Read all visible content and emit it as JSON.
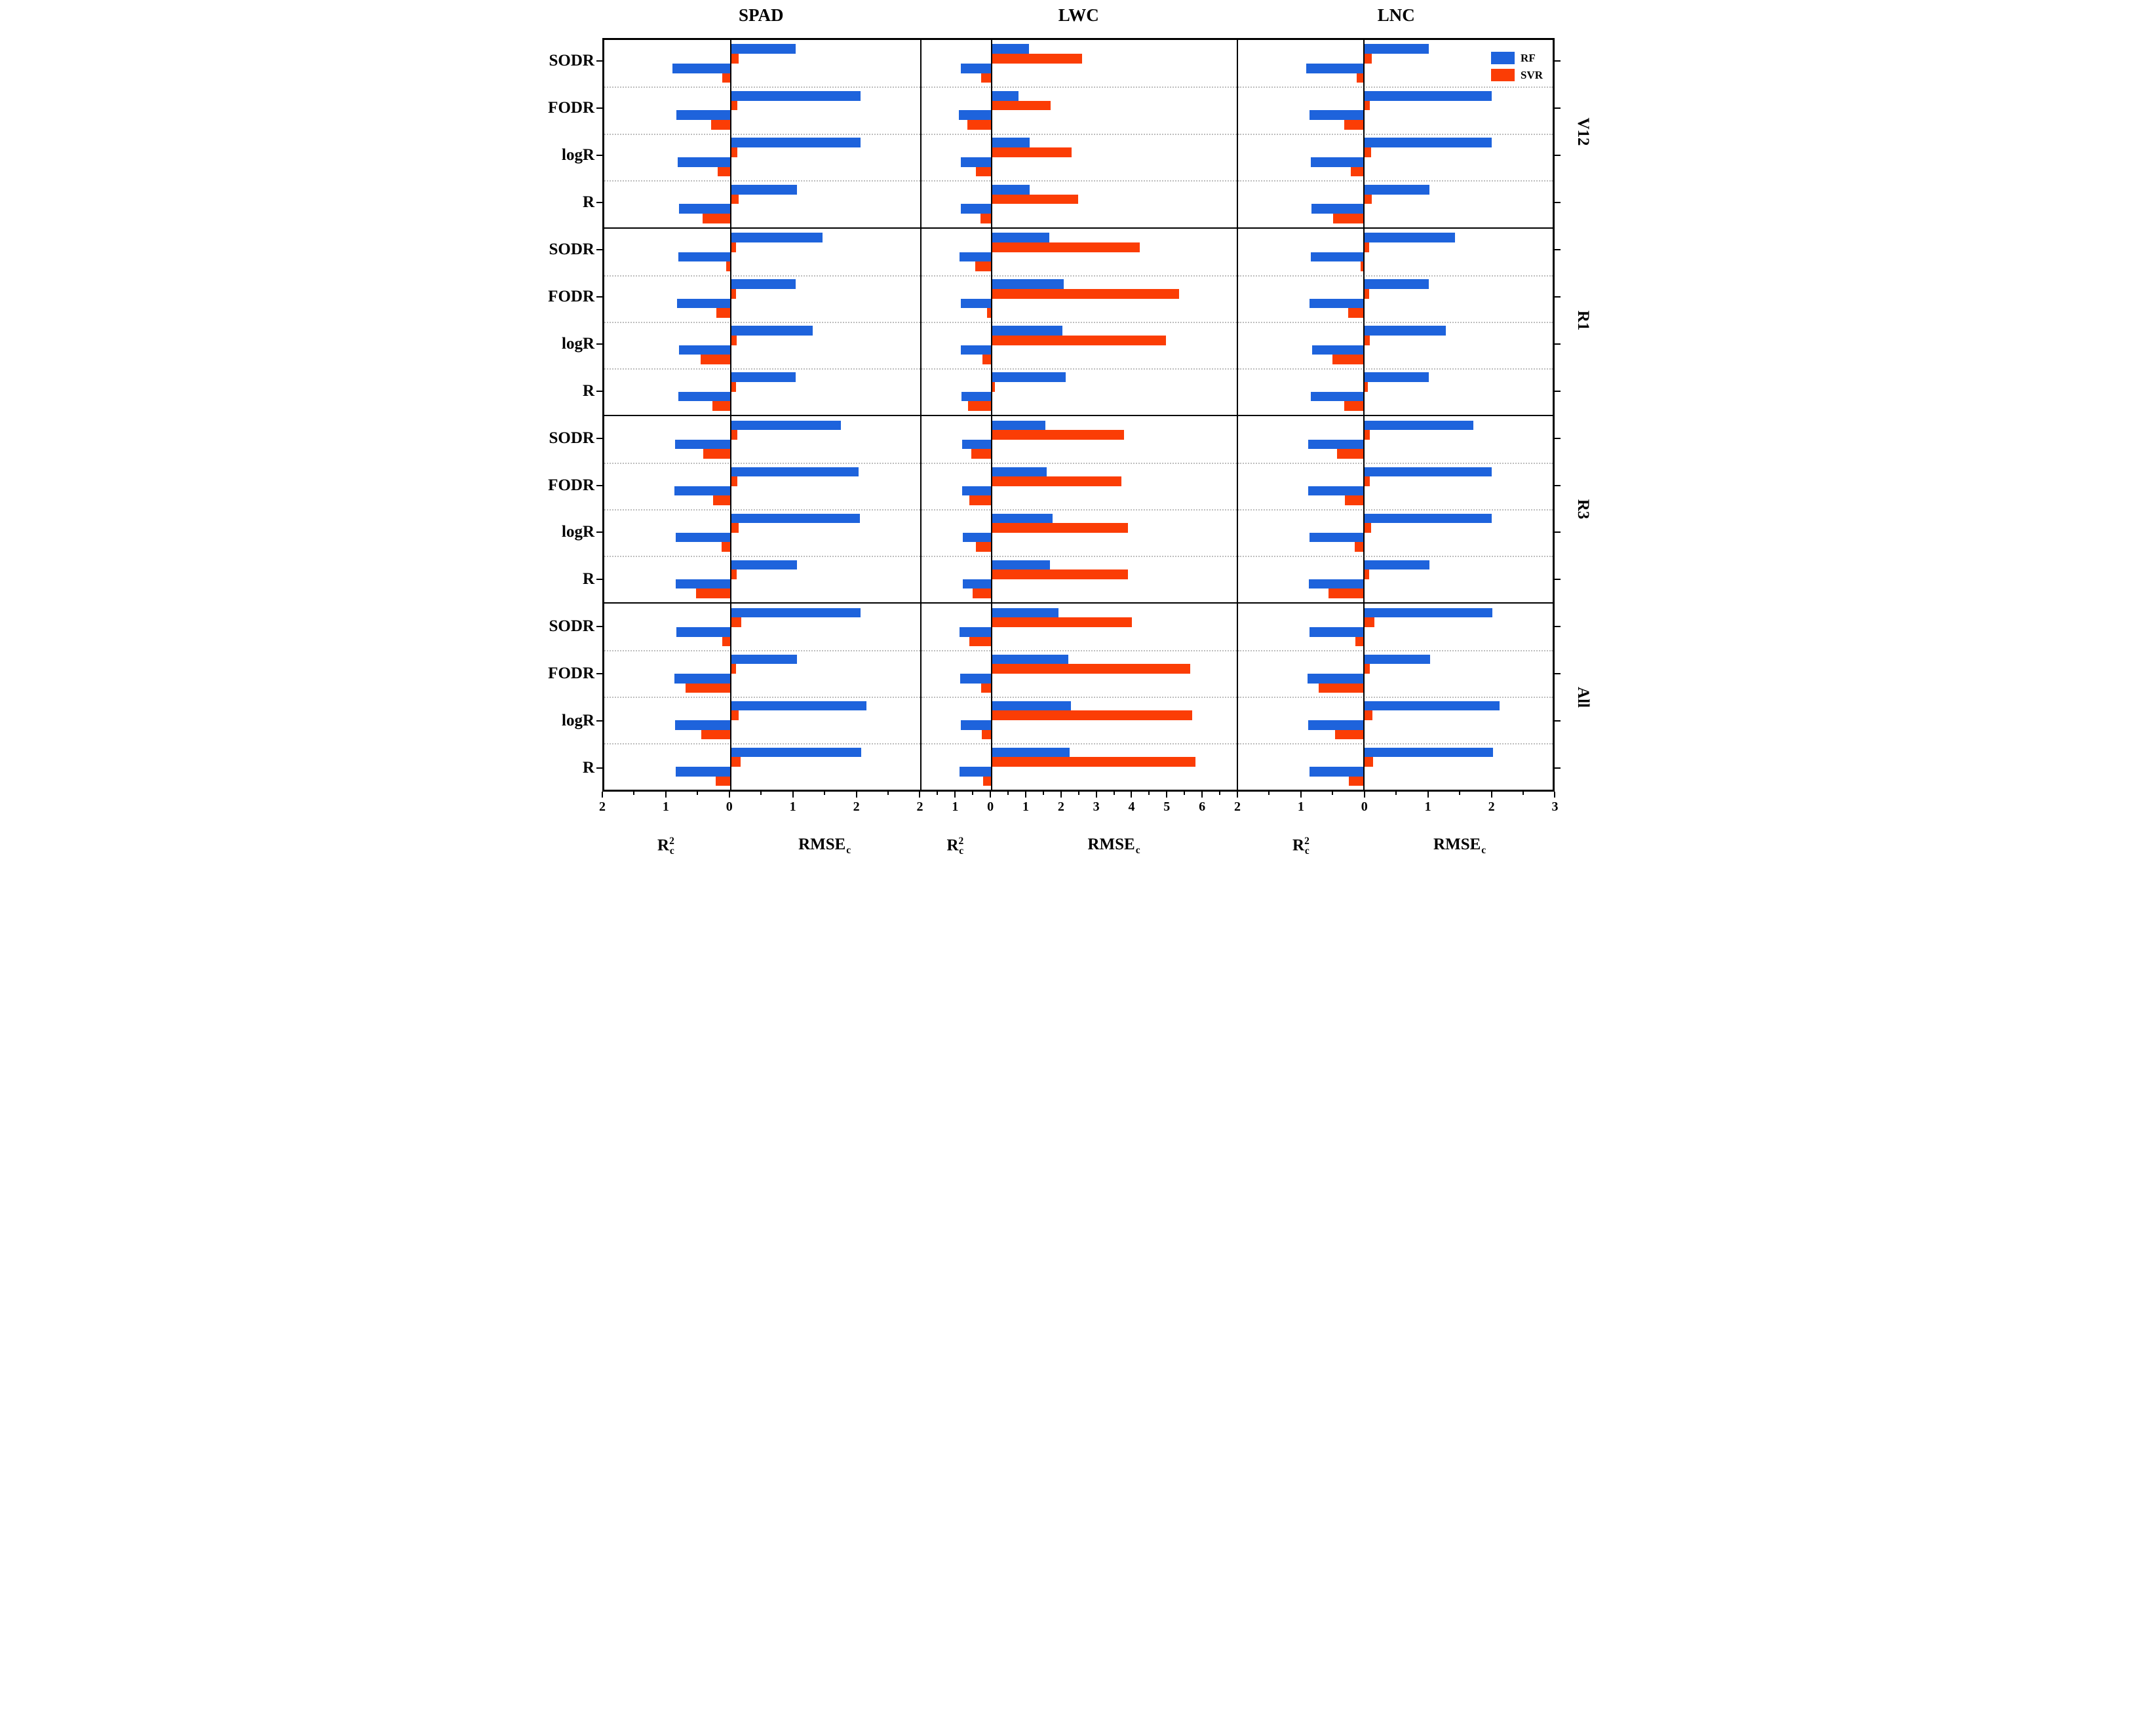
{
  "chart_data": {
    "type": "bar",
    "orientation": "horizontal-diverging",
    "description": "Calibration R2c (bars extending left of zero) and RMSEc (bars extending right of zero) for RF and SVR models, for four spectral data types (SODR, FODR, logR, R), in a 4x3 grid of panels (rows: growth stages V12, R1, R3, All; columns: traits SPAD, LWC, LNC).",
    "rows": [
      "V12",
      "R1",
      "R3",
      "All"
    ],
    "categories": [
      "SODR",
      "FODR",
      "logR",
      "R"
    ],
    "legend": [
      {
        "label": "RF",
        "color": "#1e63dc"
      },
      {
        "label": "SVR",
        "color": "#fb3d05"
      }
    ],
    "series_order": [
      {
        "model": "RF",
        "metric": "RMSEc",
        "side": "right",
        "color": "#1e63dc"
      },
      {
        "model": "SVR",
        "metric": "RMSEc",
        "side": "right",
        "color": "#fb3d05"
      },
      {
        "model": "RF",
        "metric": "R2c",
        "side": "left",
        "color": "#1e63dc"
      },
      {
        "model": "SVR",
        "metric": "R2c",
        "side": "left",
        "color": "#fb3d05"
      }
    ],
    "axis_titles": {
      "r2": {
        "base": "R",
        "sup": "2",
        "sub": "c"
      },
      "rmse": {
        "base": "RMSE",
        "sub": "c"
      }
    },
    "columns": [
      {
        "title": "SPAD",
        "neg_max": 2,
        "pos_max": 3,
        "major_ticks": [
          -2,
          -1,
          0,
          1,
          2
        ],
        "tick_labels": [
          "2",
          "1",
          "0",
          "1",
          "2"
        ]
      },
      {
        "title": "LWC",
        "neg_max": 2,
        "pos_max": 7,
        "major_ticks": [
          -2,
          -1,
          0,
          1,
          2,
          3,
          4,
          5,
          6
        ],
        "tick_labels": [
          "2",
          "1",
          "0",
          "1",
          "2",
          "3",
          "4",
          "5",
          "6"
        ]
      },
      {
        "title": "LNC",
        "neg_max": 2,
        "pos_max": 3,
        "major_ticks": [
          -2,
          -1,
          0,
          1,
          2,
          3
        ],
        "tick_labels": [
          "2",
          "1",
          "0",
          "1",
          "2",
          "3"
        ]
      }
    ],
    "value_keys_per_category": [
      "rf_rmsec",
      "svr_rmsec",
      "rf_r2c",
      "svr_r2c"
    ],
    "panels": [
      {
        "row": "V12",
        "column": "SPAD",
        "values": [
          [
            1.03,
            0.12,
            0.92,
            0.13
          ],
          [
            2.05,
            0.1,
            0.86,
            0.31
          ],
          [
            2.05,
            0.1,
            0.84,
            0.21
          ],
          [
            1.05,
            0.12,
            0.82,
            0.45
          ]
        ]
      },
      {
        "row": "V12",
        "column": "LWC",
        "values": [
          [
            1.06,
            2.58,
            0.89,
            0.31
          ],
          [
            0.77,
            1.69,
            0.95,
            0.7
          ],
          [
            1.08,
            2.28,
            0.88,
            0.45
          ],
          [
            1.09,
            2.46,
            0.88,
            0.33
          ]
        ]
      },
      {
        "row": "V12",
        "column": "LNC",
        "values": [
          [
            1.03,
            0.12,
            0.92,
            0.12
          ],
          [
            2.03,
            0.09,
            0.87,
            0.31
          ],
          [
            2.03,
            0.11,
            0.84,
            0.21
          ],
          [
            1.04,
            0.12,
            0.83,
            0.49
          ]
        ]
      },
      {
        "row": "R1",
        "column": "SPAD",
        "values": [
          [
            1.45,
            0.08,
            0.83,
            0.07
          ],
          [
            1.03,
            0.08,
            0.85,
            0.23
          ],
          [
            1.3,
            0.09,
            0.82,
            0.48
          ],
          [
            1.03,
            0.08,
            0.83,
            0.29
          ]
        ]
      },
      {
        "row": "R1",
        "column": "LWC",
        "values": [
          [
            1.64,
            4.23,
            0.92,
            0.47
          ],
          [
            2.05,
            5.36,
            0.88,
            0.13
          ],
          [
            2.01,
            4.98,
            0.89,
            0.26
          ],
          [
            2.11,
            0.09,
            0.86,
            0.68
          ]
        ]
      },
      {
        "row": "R1",
        "column": "LNC",
        "values": [
          [
            1.44,
            0.08,
            0.84,
            0.05
          ],
          [
            1.03,
            0.08,
            0.87,
            0.25
          ],
          [
            1.3,
            0.09,
            0.82,
            0.5
          ],
          [
            1.03,
            0.06,
            0.84,
            0.31
          ]
        ]
      },
      {
        "row": "R3",
        "column": "SPAD",
        "values": [
          [
            1.74,
            0.1,
            0.88,
            0.43
          ],
          [
            2.02,
            0.1,
            0.89,
            0.28
          ],
          [
            2.04,
            0.12,
            0.87,
            0.15
          ],
          [
            1.05,
            0.09,
            0.87,
            0.55
          ]
        ]
      },
      {
        "row": "R3",
        "column": "LWC",
        "values": [
          [
            1.54,
            3.77,
            0.85,
            0.58
          ],
          [
            1.57,
            3.71,
            0.85,
            0.64
          ],
          [
            1.73,
            3.89,
            0.82,
            0.45
          ],
          [
            1.67,
            3.89,
            0.83,
            0.55
          ]
        ]
      },
      {
        "row": "R3",
        "column": "LNC",
        "values": [
          [
            1.74,
            0.09,
            0.89,
            0.43
          ],
          [
            2.03,
            0.09,
            0.89,
            0.3
          ],
          [
            2.03,
            0.11,
            0.87,
            0.15
          ],
          [
            1.04,
            0.08,
            0.88,
            0.56
          ]
        ]
      },
      {
        "row": "All",
        "column": "SPAD",
        "values": [
          [
            2.05,
            0.17,
            0.86,
            0.13
          ],
          [
            1.05,
            0.08,
            0.89,
            0.72
          ],
          [
            2.15,
            0.12,
            0.88,
            0.47
          ],
          [
            2.06,
            0.16,
            0.87,
            0.24
          ]
        ]
      },
      {
        "row": "All",
        "column": "LWC",
        "values": [
          [
            1.91,
            4.01,
            0.92,
            0.65
          ],
          [
            2.19,
            5.67,
            0.9,
            0.3
          ],
          [
            2.26,
            5.73,
            0.89,
            0.29
          ],
          [
            2.22,
            5.83,
            0.92,
            0.25
          ]
        ]
      },
      {
        "row": "All",
        "column": "LNC",
        "values": [
          [
            2.04,
            0.16,
            0.87,
            0.14
          ],
          [
            1.05,
            0.09,
            0.9,
            0.72
          ],
          [
            2.15,
            0.13,
            0.89,
            0.46
          ],
          [
            2.05,
            0.14,
            0.87,
            0.24
          ]
        ]
      }
    ],
    "layout": {
      "grid_on": false,
      "category_separators": "dotted",
      "legend_position": "top-right of first-row LNC panel"
    }
  }
}
